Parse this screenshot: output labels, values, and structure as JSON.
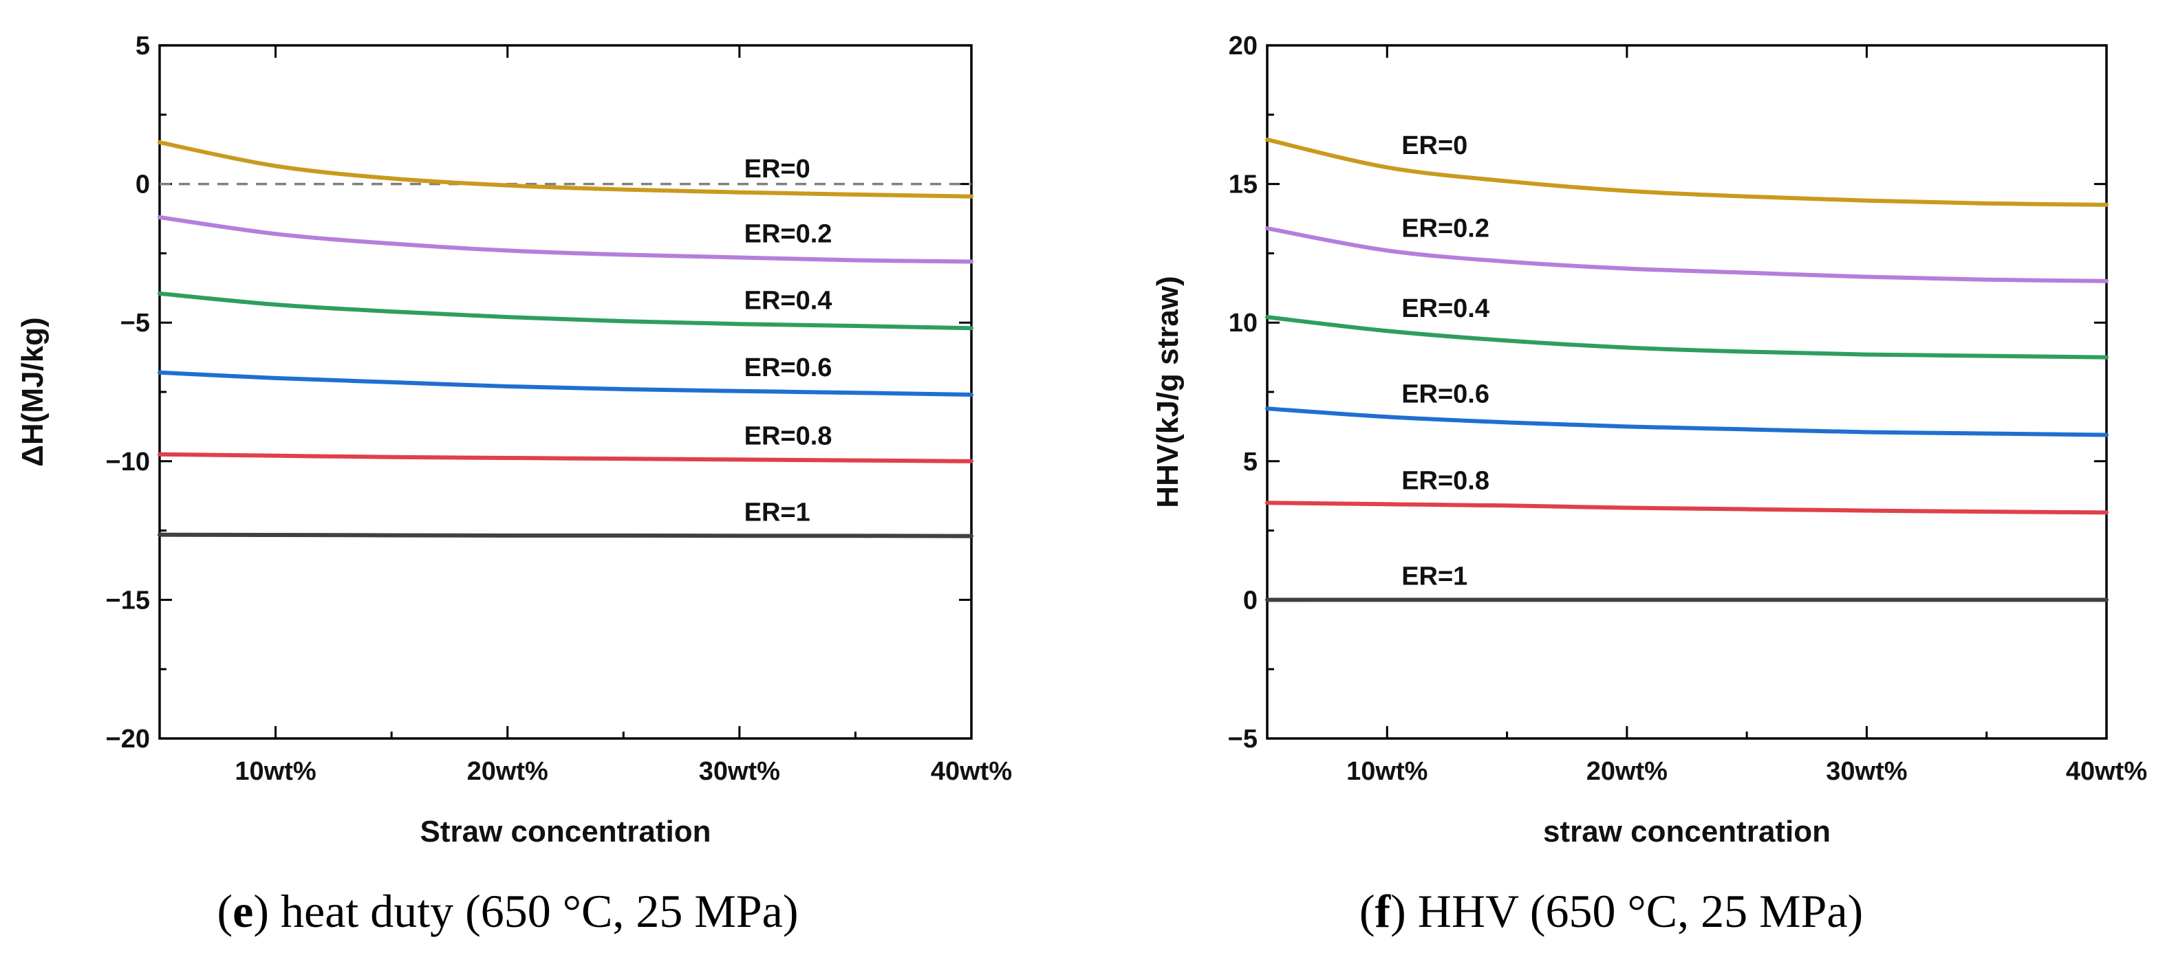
{
  "chart_data": [
    {
      "id": "e",
      "type": "line",
      "caption_letter": "e",
      "caption_text": " heat duty (650 °C, 25 MPa)",
      "xlabel": "Straw concentration",
      "ylabel": "ΔH(MJ/kg)",
      "x_tick_labels": [
        "10wt%",
        "20wt%",
        "30wt%",
        "40wt%"
      ],
      "x_tick_values": [
        10,
        20,
        30,
        40
      ],
      "xlim": [
        5,
        40
      ],
      "y_ticks": [
        5,
        0,
        -5,
        -10,
        -15,
        -20
      ],
      "ylim": [
        -20,
        5
      ],
      "reference_line": {
        "y": 0,
        "style": "dashed",
        "color": "#808080"
      },
      "series": [
        {
          "name": "ER=0",
          "color": "#C89A1E",
          "x": [
            5,
            10,
            15,
            20,
            25,
            30,
            35,
            40
          ],
          "values": [
            1.5,
            0.65,
            0.2,
            -0.05,
            -0.2,
            -0.3,
            -0.38,
            -0.45
          ]
        },
        {
          "name": "ER=0.2",
          "color": "#B57EDC",
          "x": [
            5,
            10,
            15,
            20,
            25,
            30,
            35,
            40
          ],
          "values": [
            -1.2,
            -1.8,
            -2.15,
            -2.4,
            -2.55,
            -2.65,
            -2.75,
            -2.8
          ]
        },
        {
          "name": "ER=0.4",
          "color": "#2E9E5E",
          "x": [
            5,
            10,
            15,
            20,
            25,
            30,
            35,
            40
          ],
          "values": [
            -3.95,
            -4.35,
            -4.6,
            -4.8,
            -4.95,
            -5.05,
            -5.12,
            -5.2
          ]
        },
        {
          "name": "ER=0.6",
          "color": "#1F6FD0",
          "x": [
            5,
            10,
            15,
            20,
            25,
            30,
            35,
            40
          ],
          "values": [
            -6.8,
            -7.0,
            -7.15,
            -7.3,
            -7.4,
            -7.47,
            -7.53,
            -7.6
          ]
        },
        {
          "name": "ER=0.8",
          "color": "#E0404A",
          "x": [
            5,
            10,
            15,
            20,
            25,
            30,
            35,
            40
          ],
          "values": [
            -9.75,
            -9.8,
            -9.85,
            -9.88,
            -9.91,
            -9.94,
            -9.97,
            -10.0
          ]
        },
        {
          "name": "ER=1",
          "color": "#404040",
          "x": [
            5,
            10,
            15,
            20,
            25,
            30,
            35,
            40
          ],
          "values": [
            -12.65,
            -12.66,
            -12.67,
            -12.68,
            -12.68,
            -12.69,
            -12.69,
            -12.7
          ]
        }
      ]
    },
    {
      "id": "f",
      "type": "line",
      "caption_letter": "f",
      "caption_text": " HHV (650 °C, 25 MPa)",
      "xlabel": "straw concentration",
      "ylabel": "HHV(kJ/g straw)",
      "x_tick_labels": [
        "10wt%",
        "20wt%",
        "30wt%",
        "40wt%"
      ],
      "x_tick_values": [
        10,
        20,
        30,
        40
      ],
      "xlim": [
        5,
        40
      ],
      "y_ticks": [
        20,
        15,
        10,
        5,
        0,
        -5
      ],
      "ylim": [
        -5,
        20
      ],
      "reference_line": {
        "y": 0,
        "style": "dashed",
        "color": "#808080"
      },
      "series": [
        {
          "name": "ER=0",
          "color": "#C89A1E",
          "x": [
            5,
            10,
            15,
            20,
            25,
            30,
            35,
            40
          ],
          "values": [
            16.6,
            15.6,
            15.1,
            14.75,
            14.55,
            14.4,
            14.3,
            14.25
          ]
        },
        {
          "name": "ER=0.2",
          "color": "#B57EDC",
          "x": [
            5,
            10,
            15,
            20,
            25,
            30,
            35,
            40
          ],
          "values": [
            13.4,
            12.6,
            12.2,
            11.95,
            11.8,
            11.65,
            11.55,
            11.5
          ]
        },
        {
          "name": "ER=0.4",
          "color": "#2E9E5E",
          "x": [
            5,
            10,
            15,
            20,
            25,
            30,
            35,
            40
          ],
          "values": [
            10.2,
            9.7,
            9.35,
            9.1,
            8.95,
            8.85,
            8.8,
            8.75
          ]
        },
        {
          "name": "ER=0.6",
          "color": "#1F6FD0",
          "x": [
            5,
            10,
            15,
            20,
            25,
            30,
            35,
            40
          ],
          "values": [
            6.9,
            6.6,
            6.4,
            6.25,
            6.15,
            6.05,
            6.0,
            5.95
          ]
        },
        {
          "name": "ER=0.8",
          "color": "#E0404A",
          "x": [
            5,
            10,
            15,
            20,
            25,
            30,
            35,
            40
          ],
          "values": [
            3.5,
            3.45,
            3.4,
            3.32,
            3.27,
            3.22,
            3.18,
            3.15
          ]
        },
        {
          "name": "ER=1",
          "color": "#404040",
          "x": [
            5,
            10,
            15,
            20,
            25,
            30,
            35,
            40
          ],
          "values": [
            0,
            0,
            0,
            0,
            0,
            0,
            0,
            0
          ]
        }
      ]
    }
  ]
}
